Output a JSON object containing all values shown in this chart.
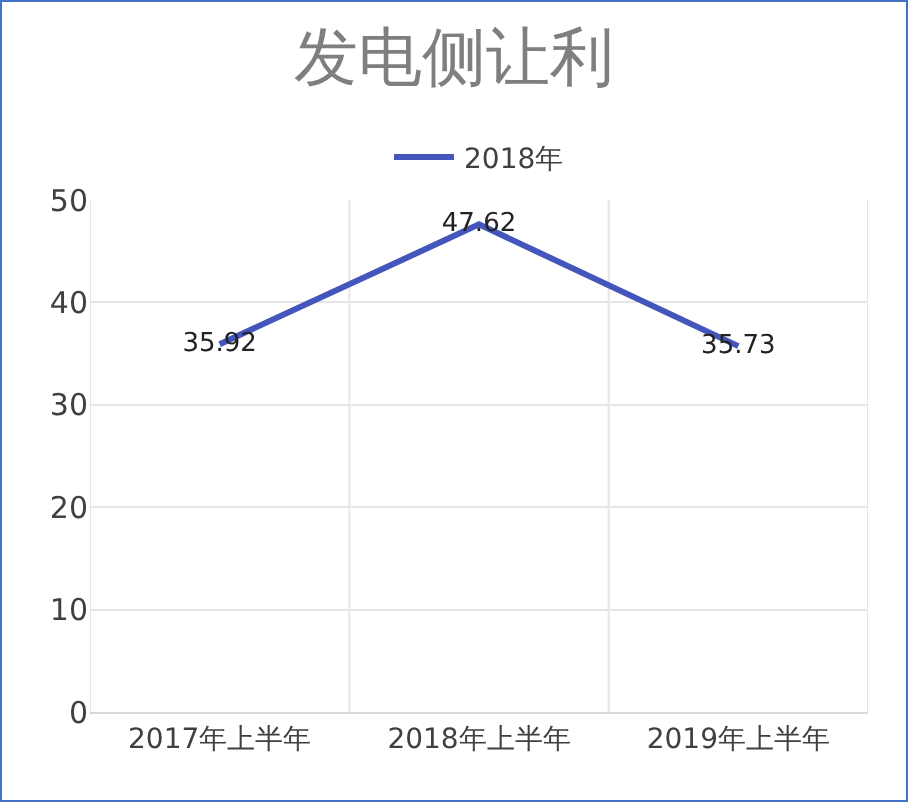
{
  "chart_data": {
    "type": "line",
    "title": "发电侧让利",
    "categories": [
      "2017年上半年",
      "2018年上半年",
      "2019年上半年"
    ],
    "series": [
      {
        "name": "2018年",
        "color": "#4455bb",
        "values": [
          35.92,
          47.62,
          35.73
        ]
      }
    ],
    "ylim": [
      0,
      50
    ],
    "yticks": [
      0,
      10,
      20,
      30,
      40,
      50
    ],
    "grid": true,
    "legend": "top",
    "data_labels": true,
    "marker": "none",
    "line_style": "solid"
  }
}
